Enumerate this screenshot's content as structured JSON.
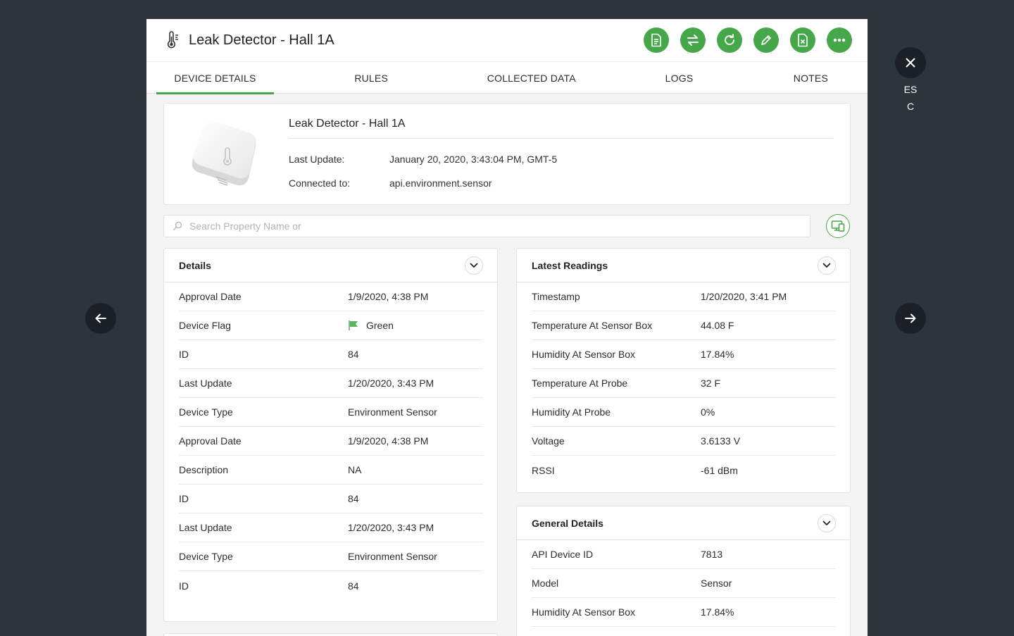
{
  "title": "Leak Detector - Hall 1A",
  "tabs": [
    "DEVICE DETAILS",
    "RULES",
    "COLLECTED DATA",
    "LOGS",
    "NOTES"
  ],
  "summary": {
    "name": "Leak Detector - Hall 1A",
    "last_update_label": "Last Update:",
    "last_update_value": "January 20, 2020, 3:43:04 PM, GMT-5",
    "connected_label": "Connected to:",
    "connected_value": "api.environment.sensor"
  },
  "search": {
    "placeholder": "Search Property Name or"
  },
  "details": {
    "title": "Details",
    "rows": [
      {
        "label": "Approval Date",
        "value": "1/9/2020, 4:38 PM"
      },
      {
        "label": "Device Flag",
        "value": "Green"
      },
      {
        "label": "ID",
        "value": "84"
      },
      {
        "label": "Last Update",
        "value": "1/20/2020, 3:43 PM"
      },
      {
        "label": "Device Type",
        "value": "Environment Sensor"
      },
      {
        "label": "Approval Date",
        "value": "1/9/2020, 4:38 PM"
      },
      {
        "label": "Description",
        "value": "NA"
      },
      {
        "label": "ID",
        "value": "84"
      },
      {
        "label": "Last Update",
        "value": "1/20/2020, 3:43 PM"
      },
      {
        "label": "Device Type",
        "value": "Environment Sensor"
      },
      {
        "label": "ID",
        "value": "84"
      }
    ]
  },
  "readings": {
    "title": "Latest Readings",
    "rows": [
      {
        "label": "Timestamp",
        "value": "1/20/2020, 3:41 PM"
      },
      {
        "label": "Temperature At Sensor Box",
        "value": "44.08 F"
      },
      {
        "label": "Humidity At Sensor Box",
        "value": "17.84%"
      },
      {
        "label": "Temperature At Probe",
        "value": "32 F"
      },
      {
        "label": "Humidity At Probe",
        "value": "0%"
      },
      {
        "label": "Voltage",
        "value": "3.6133 V"
      },
      {
        "label": "RSSI",
        "value": "-61 dBm"
      }
    ]
  },
  "general": {
    "title": "General Details",
    "rows": [
      {
        "label": "API Device ID",
        "value": "7813"
      },
      {
        "label": "Model",
        "value": "Sensor"
      },
      {
        "label": "Humidity At Sensor Box",
        "value": "17.84%"
      }
    ]
  },
  "close_label_line1": "ES",
  "close_label_line2": "C",
  "colors": {
    "accent": "#46a74a",
    "backdrop": "#2c343c",
    "flag": "#5bb35e"
  },
  "icons": {
    "header": "thermometer-icon",
    "actions": [
      "report-icon",
      "transfer-icon",
      "refresh-icon",
      "edit-icon",
      "remove-device-icon",
      "more-icon"
    ],
    "search": "search-icon",
    "view_toggle": "devices-icon",
    "flag": "flag-icon",
    "nav": [
      "arrow-left-icon",
      "arrow-right-icon",
      "close-icon"
    ]
  }
}
